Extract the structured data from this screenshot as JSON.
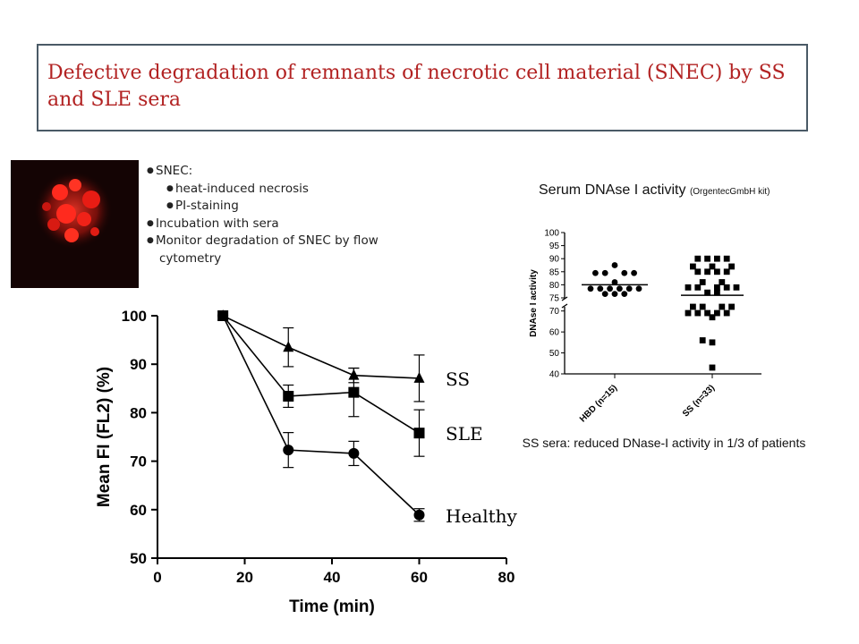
{
  "slide": {
    "title": "Defective degradation of remnants of necrotic cell material (SNEC) by SS and SLE sera"
  },
  "image": {
    "icon": "microscopy-image-icon",
    "colors": {
      "background": "#140404",
      "stain": "#e0201a"
    }
  },
  "bullets": [
    {
      "level": 1,
      "text": "SNEC:"
    },
    {
      "level": 2,
      "text": "heat-induced necrosis"
    },
    {
      "level": 2,
      "text": "PI-staining"
    },
    {
      "level": 1,
      "text": "Incubation with sera"
    },
    {
      "level": 1,
      "text": "Monitor degradation of SNEC by flow"
    },
    {
      "level": 0,
      "text": "cytometry"
    }
  ],
  "chart_data": [
    {
      "type": "line",
      "xlabel": "Time (min)",
      "ylabel": "Mean FI (FL2) (%)",
      "xlim": [
        0,
        80
      ],
      "ylim": [
        50,
        100
      ],
      "x_ticks": [
        "0",
        "20",
        "40",
        "60",
        "80"
      ],
      "y_ticks": [
        "50",
        "60",
        "70",
        "80",
        "90",
        "100"
      ],
      "x": [
        15,
        30,
        45,
        60
      ],
      "grid": false,
      "series": [
        {
          "name": "SS",
          "marker": "triangle",
          "values": [
            100,
            93.5,
            87.7,
            87.1
          ],
          "errors": [
            0,
            4.0,
            1.5,
            4.8
          ]
        },
        {
          "name": "SLE",
          "marker": "square",
          "values": [
            100,
            83.4,
            84.2,
            75.8
          ],
          "errors": [
            0,
            2.3,
            5.0,
            4.8
          ]
        },
        {
          "name": "Healthy",
          "marker": "circle",
          "values": [
            100,
            72.3,
            71.6,
            58.9
          ],
          "errors": [
            0,
            3.6,
            2.5,
            1.3
          ]
        }
      ]
    },
    {
      "type": "scatter",
      "title": "Serum DNAse I activity",
      "title_note": "(OrgentecGmbH kit)",
      "ylabel": "DNAse I activity",
      "categories": [
        "HBD (n=15)",
        "SS (n=33)"
      ],
      "y_ticks_upper": [
        "75",
        "80",
        "85",
        "90",
        "95",
        "100"
      ],
      "y_ticks_lower": [
        "40",
        "50",
        "60",
        "70"
      ],
      "axis_break": true,
      "groups": [
        {
          "category": "HBD (n=15)",
          "marker": "circle",
          "mean": 80,
          "points": [
            [
              -5,
              78.5
            ],
            [
              -3,
              78.5
            ],
            [
              -1,
              78.5
            ],
            [
              1,
              78.5
            ],
            [
              3,
              78.5
            ],
            [
              5,
              78.5
            ],
            [
              -2,
              76.5
            ],
            [
              0,
              76.5
            ],
            [
              2,
              76.5
            ],
            [
              -4,
              84.5
            ],
            [
              4,
              84.5
            ],
            [
              -2,
              84.5
            ],
            [
              2,
              84.5
            ],
            [
              0,
              87.5
            ],
            [
              0,
              81
            ]
          ]
        },
        {
          "category": "SS (n=33)",
          "marker": "square",
          "mean": 76,
          "points": [
            [
              -3,
              90
            ],
            [
              -1,
              90
            ],
            [
              1,
              90
            ],
            [
              3,
              90
            ],
            [
              -4,
              87
            ],
            [
              0,
              87
            ],
            [
              4,
              87
            ],
            [
              -3,
              85
            ],
            [
              -1,
              85
            ],
            [
              1,
              85
            ],
            [
              3,
              85
            ],
            [
              -2,
              81
            ],
            [
              2,
              81
            ],
            [
              -5,
              79
            ],
            [
              -3,
              79
            ],
            [
              1,
              79
            ],
            [
              3,
              79
            ],
            [
              5,
              79
            ],
            [
              -1,
              77
            ],
            [
              1,
              77
            ],
            [
              -4,
              72
            ],
            [
              -2,
              72
            ],
            [
              2,
              72
            ],
            [
              4,
              72
            ],
            [
              -5,
              69
            ],
            [
              -3,
              69
            ],
            [
              -1,
              69
            ],
            [
              1,
              69
            ],
            [
              3,
              69
            ],
            [
              0,
              67
            ],
            [
              -2,
              56
            ],
            [
              0,
              55
            ],
            [
              0,
              43
            ]
          ]
        }
      ],
      "caption": "SS sera: reduced DNase-I activity in 1/3 of patients"
    }
  ]
}
